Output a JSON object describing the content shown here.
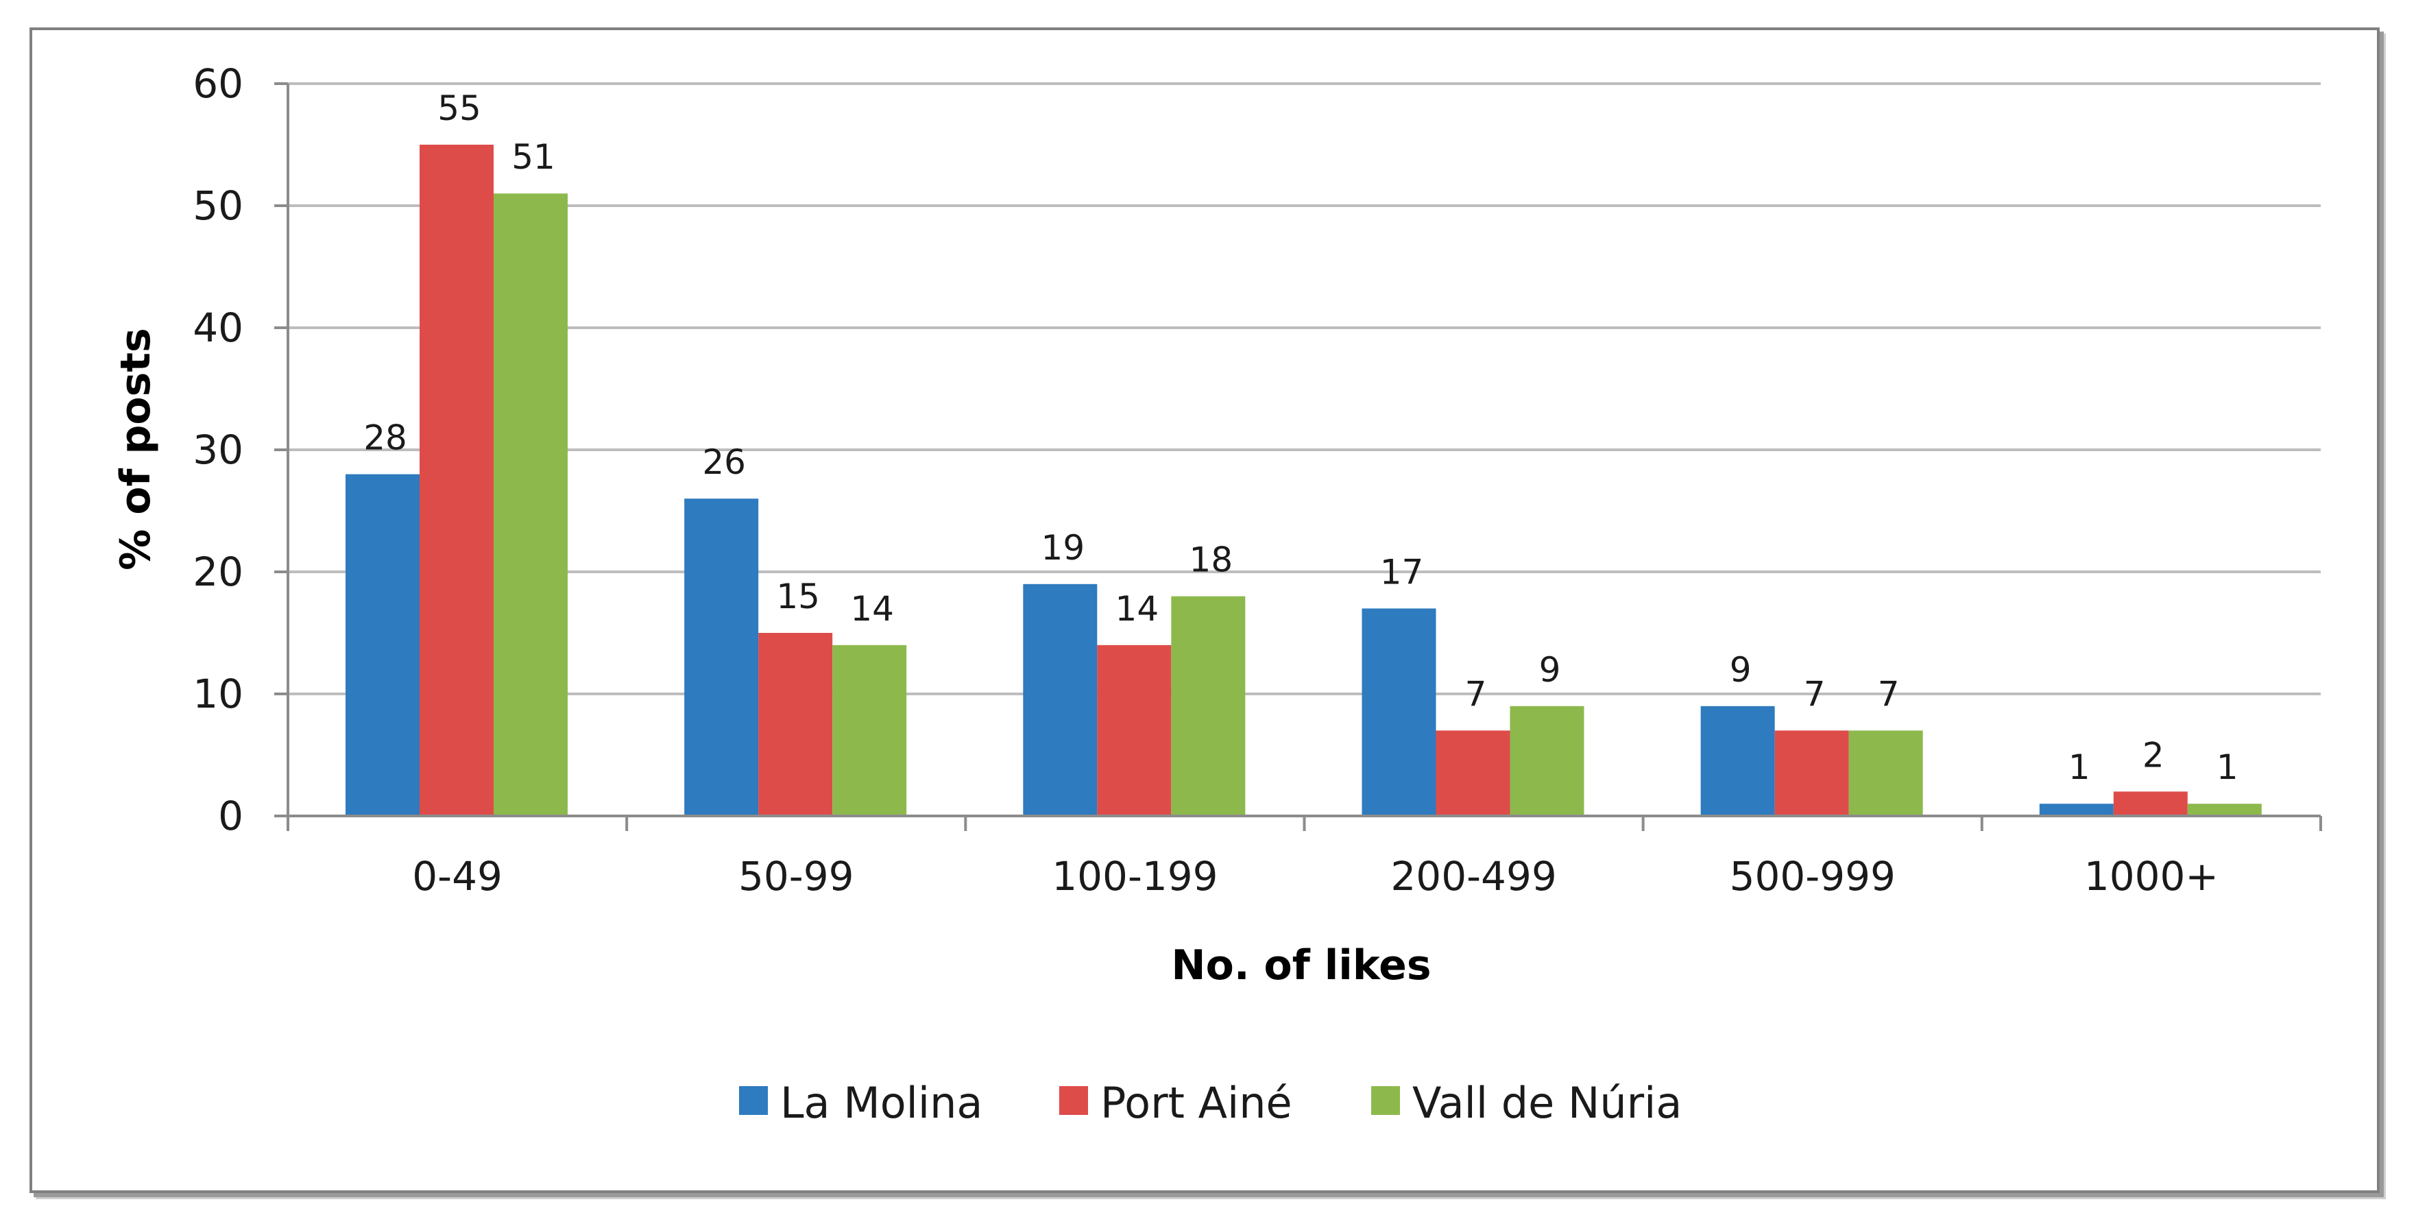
{
  "chart_data": {
    "type": "bar",
    "title": "",
    "xlabel": "No. of likes",
    "ylabel": "% of posts",
    "ylim": [
      0,
      60
    ],
    "yticks": [
      0,
      10,
      20,
      30,
      40,
      50,
      60
    ],
    "grid": true,
    "legend_position": "bottom",
    "categories": [
      "0-49",
      "50-99",
      "100-199",
      "200-499",
      "500-999",
      "1000+"
    ],
    "series": [
      {
        "name": "La Molina",
        "color": "#2e7bbf",
        "values": [
          28,
          26,
          19,
          17,
          9,
          1
        ]
      },
      {
        "name": "Port Ainé",
        "color": "#de4c4a",
        "values": [
          55,
          15,
          14,
          7,
          7,
          2
        ]
      },
      {
        "name": "Vall de Núria",
        "color": "#8db94c",
        "values": [
          51,
          14,
          18,
          9,
          7,
          1
        ]
      }
    ]
  }
}
